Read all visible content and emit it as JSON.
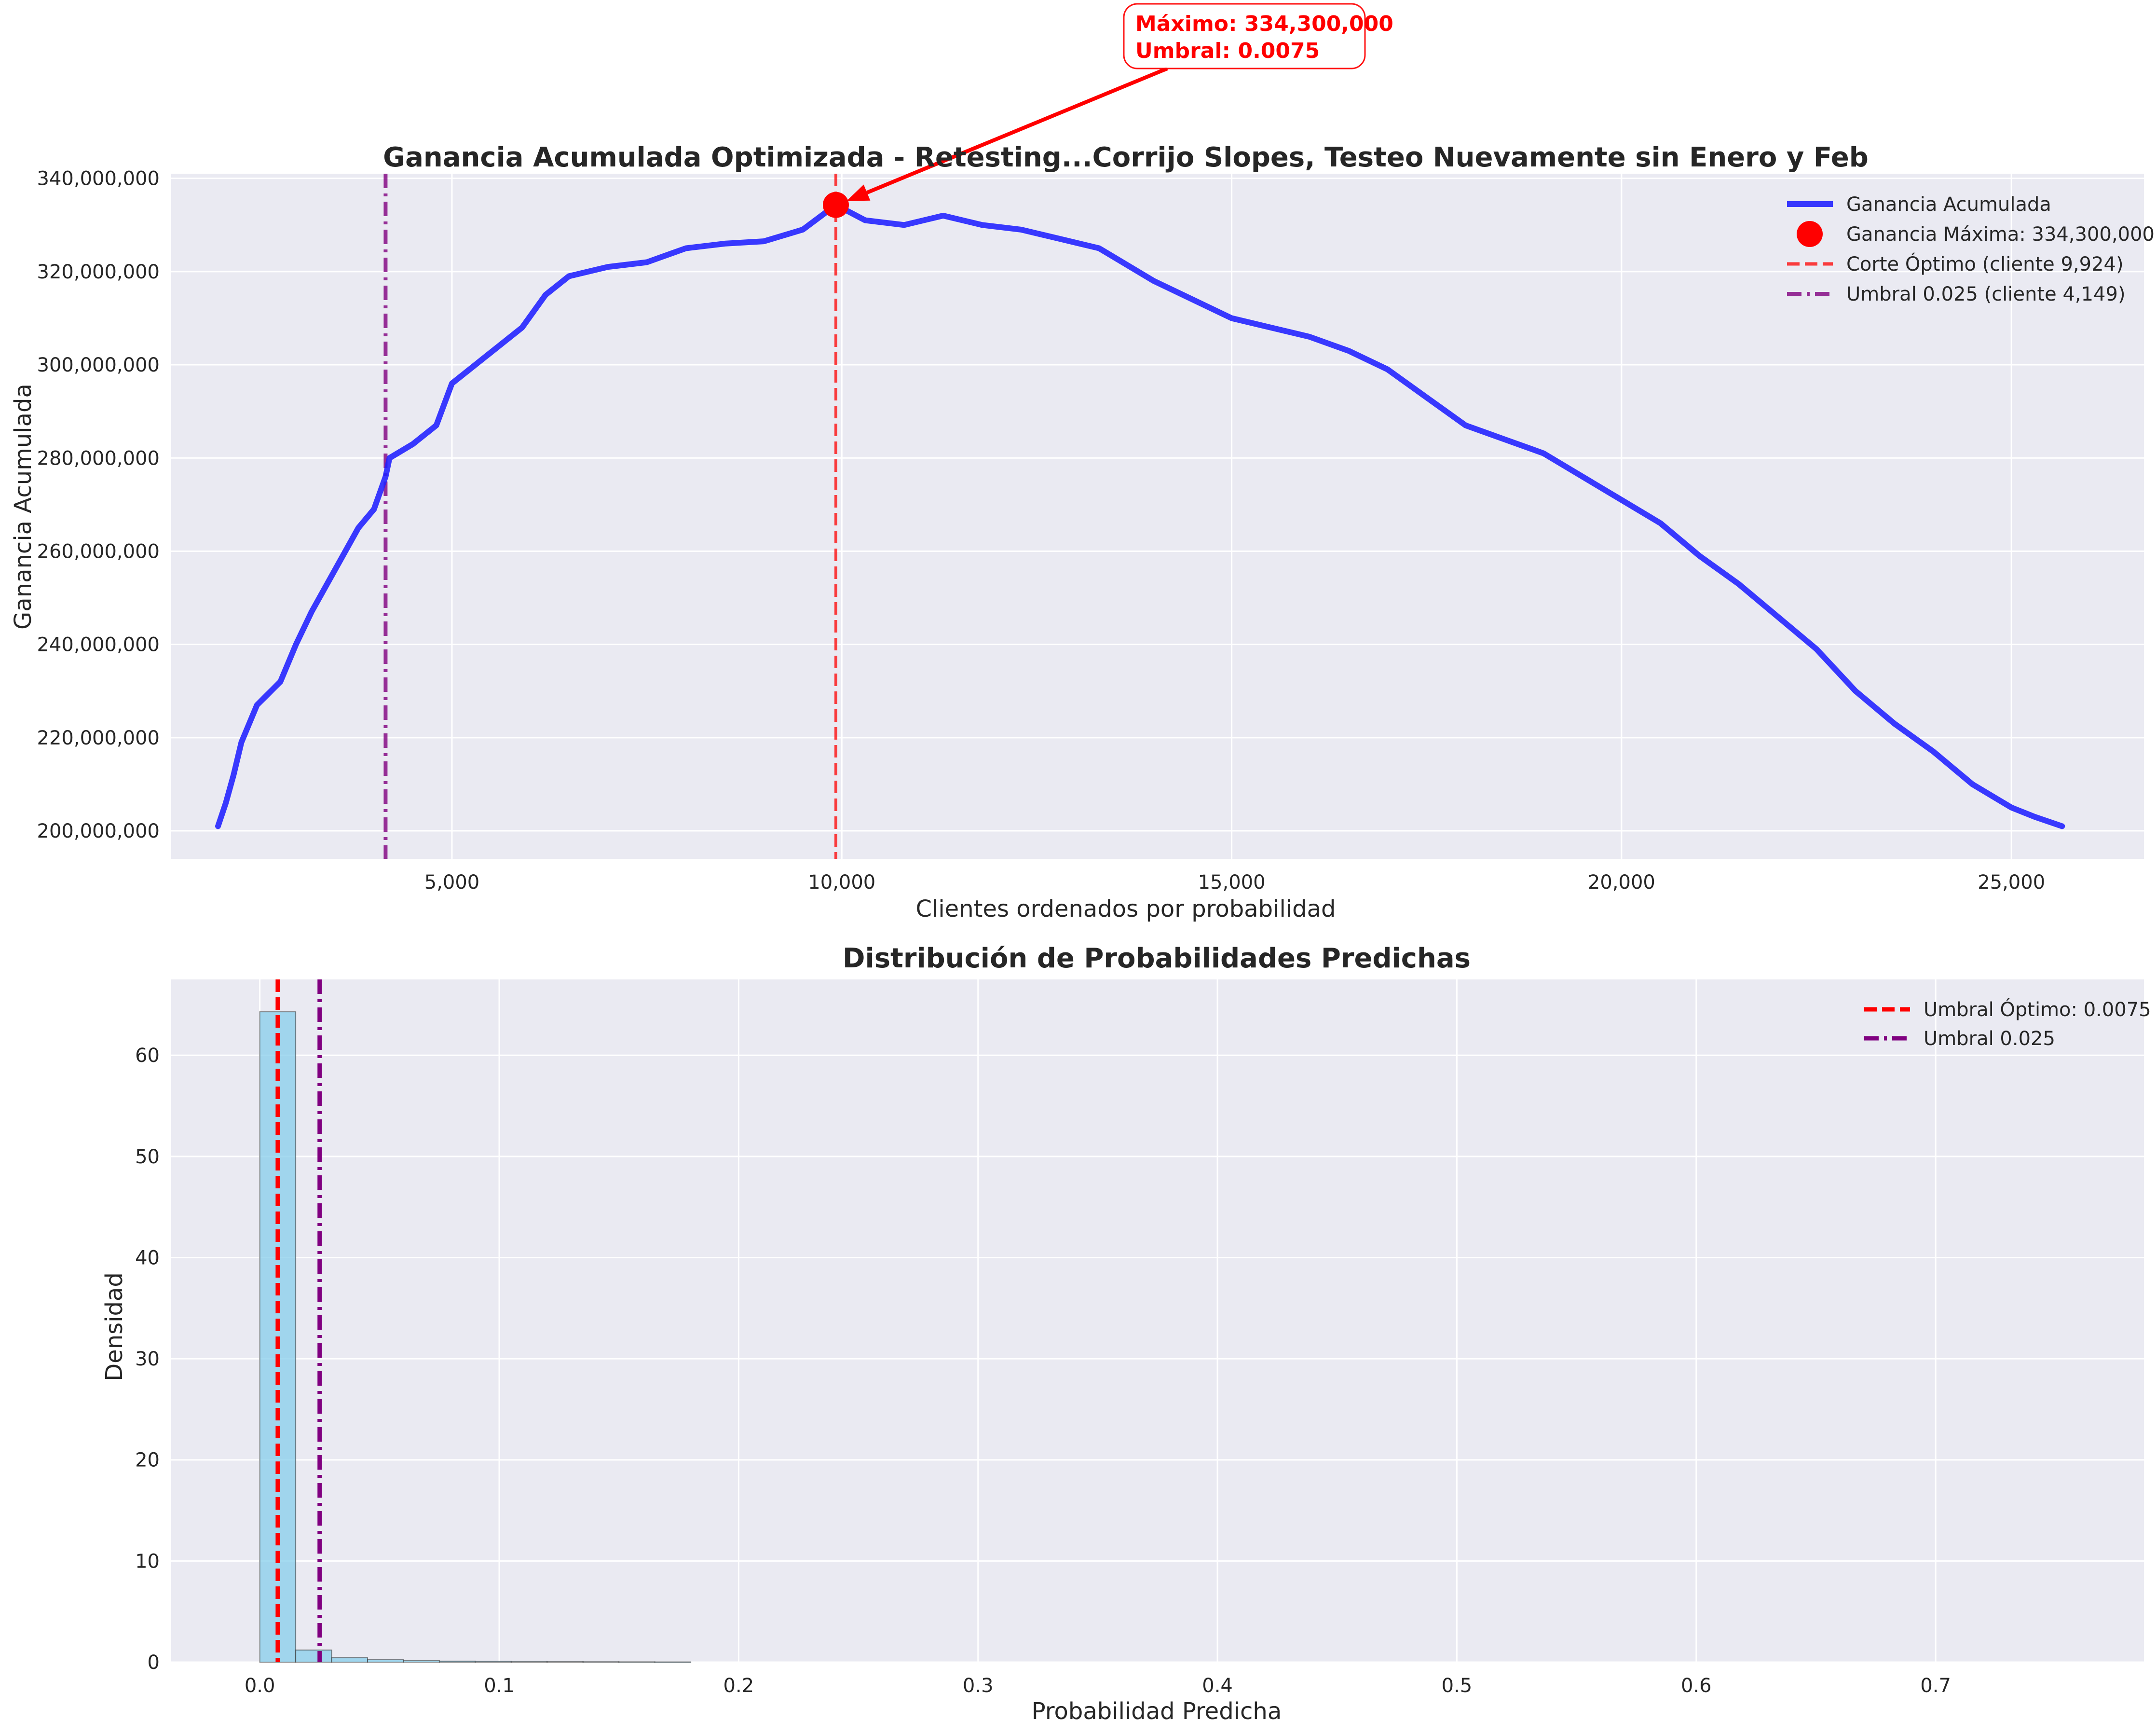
{
  "chart_data": [
    {
      "type": "line",
      "title": "Ganancia Acumulada Optimizada - Retesting...Corrijo Slopes, Testeo Nuevamente sin Enero y Feb",
      "xlabel": "Clientes ordenados por probabilidad",
      "ylabel": "Ganancia Acumulada",
      "xlim": [
        1400,
        26700
      ],
      "ylim": [
        194000000,
        341000000
      ],
      "xticks": [
        5000,
        10000,
        15000,
        20000,
        25000
      ],
      "xtick_labels": [
        "5,000",
        "10,000",
        "15,000",
        "20,000",
        "25,000"
      ],
      "yticks": [
        200000000,
        220000000,
        240000000,
        260000000,
        280000000,
        300000000,
        320000000,
        340000000
      ],
      "ytick_labels": [
        "200,000,000",
        "220,000,000",
        "240,000,000",
        "260,000,000",
        "280,000,000",
        "300,000,000",
        "320,000,000",
        "340,000,000"
      ],
      "grid": true,
      "legend_position": "top-right",
      "series": [
        {
          "name": "Ganancia Acumulada",
          "color": "#1f1fff",
          "x": [
            2000,
            2100,
            2200,
            2300,
            2500,
            2800,
            3000,
            3200,
            3500,
            3800,
            4000,
            4149,
            4200,
            4500,
            4800,
            5000,
            5300,
            5600,
            5900,
            6200,
            6500,
            7000,
            7500,
            8000,
            8500,
            9000,
            9500,
            9924,
            10300,
            10800,
            11300,
            11800,
            12300,
            12800,
            13300,
            14000,
            14500,
            15000,
            15500,
            16000,
            16500,
            17000,
            17500,
            18000,
            18500,
            19000,
            19500,
            20000,
            20500,
            21000,
            21500,
            22000,
            22500,
            23000,
            23500,
            24000,
            24500,
            25000,
            25300,
            25650
          ],
          "values": [
            201000000,
            206000000,
            212000000,
            219000000,
            227000000,
            232000000,
            240000000,
            247000000,
            256000000,
            265000000,
            269000000,
            276000000,
            280000000,
            283000000,
            287000000,
            296000000,
            300000000,
            304000000,
            308000000,
            315000000,
            319000000,
            321000000,
            322000000,
            325000000,
            326000000,
            326500000,
            329000000,
            334300000,
            331000000,
            330000000,
            332000000,
            330000000,
            329000000,
            327000000,
            325000000,
            318000000,
            314000000,
            310000000,
            308000000,
            306000000,
            303000000,
            299000000,
            293000000,
            287000000,
            284000000,
            281000000,
            276000000,
            271000000,
            266000000,
            259000000,
            253000000,
            246000000,
            239000000,
            230000000,
            223000000,
            217000000,
            210000000,
            205000000,
            203000000,
            201000000
          ]
        }
      ],
      "max_point": {
        "name": "Ganancia Máxima: 334,300,000",
        "x": 9924,
        "y": 334300000,
        "color": "#ff0000"
      },
      "vlines": [
        {
          "name": "Corte Óptimo (cliente 9,924)",
          "x": 9924,
          "color": "#ff0000",
          "style": "dashed"
        },
        {
          "name": "Umbral 0.025 (cliente 4,149)",
          "x": 4149,
          "color": "#800080",
          "style": "dashdot"
        }
      ],
      "annotation": {
        "line1": "Máximo: 334,300,000",
        "line2": "Umbral: 0.0075",
        "color": "#ff0000"
      }
    },
    {
      "type": "bar",
      "title": "Distribución de Probabilidades Predichas",
      "xlabel": "Probabilidad Predicha",
      "ylabel": "Densidad",
      "xlim": [
        -0.037,
        0.787
      ],
      "ylim": [
        0,
        67.5
      ],
      "xticks": [
        0.0,
        0.1,
        0.2,
        0.3,
        0.4,
        0.5,
        0.6,
        0.7
      ],
      "xtick_labels": [
        "0.0",
        "0.1",
        "0.2",
        "0.3",
        "0.4",
        "0.5",
        "0.6",
        "0.7"
      ],
      "yticks": [
        0,
        10,
        20,
        30,
        40,
        50,
        60
      ],
      "ytick_labels": [
        "0",
        "10",
        "20",
        "30",
        "40",
        "50",
        "60"
      ],
      "grid": true,
      "legend_position": "top-right",
      "bin_width": 0.015,
      "bin_start": 0.0,
      "values": [
        64.3,
        1.2,
        0.45,
        0.25,
        0.15,
        0.1,
        0.08,
        0.06,
        0.05,
        0.04,
        0.03,
        0.02
      ],
      "bar_color": "#87ceeb",
      "vlines": [
        {
          "name": "Umbral Óptimo: 0.0075",
          "x": 0.0075,
          "color": "#ff0000",
          "style": "dashed"
        },
        {
          "name": "Umbral 0.025",
          "x": 0.025,
          "color": "#800080",
          "style": "dashdot"
        }
      ]
    }
  ]
}
